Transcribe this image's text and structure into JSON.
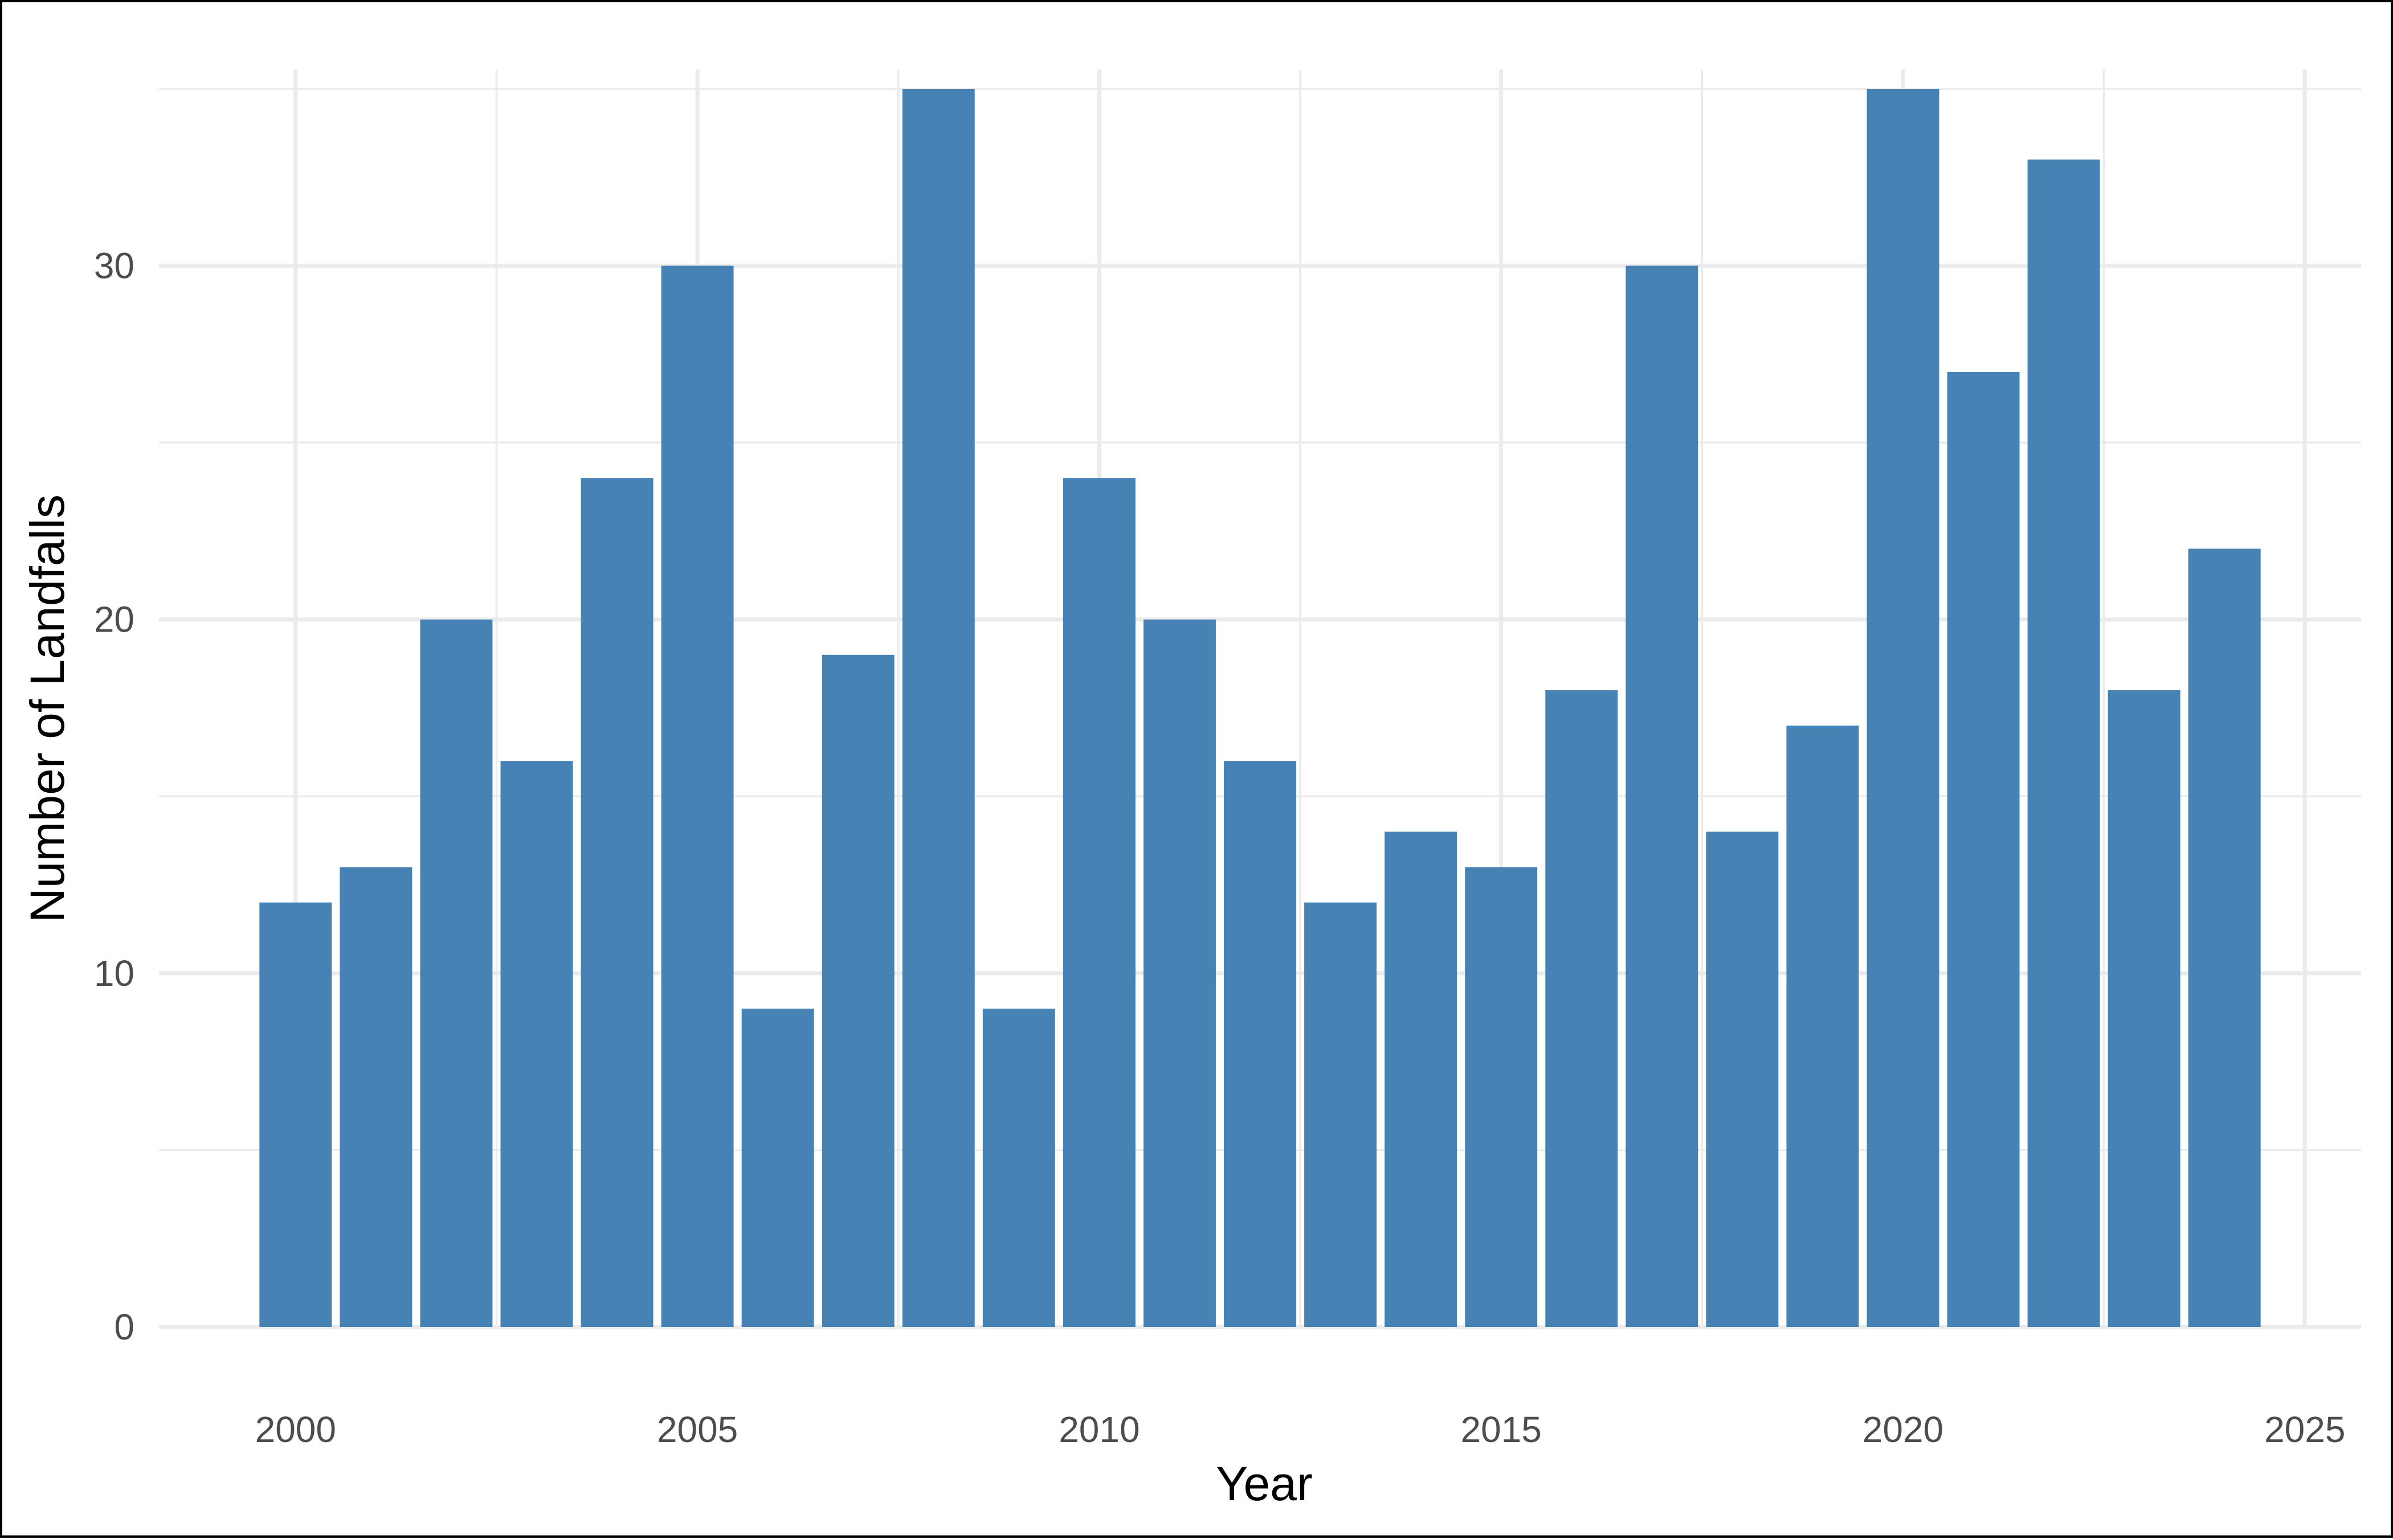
{
  "chart_data": {
    "type": "bar",
    "title": "",
    "xlabel": "Year",
    "ylabel": "Number of Landfalls",
    "x": [
      2000,
      2001,
      2002,
      2003,
      2004,
      2005,
      2006,
      2007,
      2008,
      2009,
      2010,
      2011,
      2012,
      2013,
      2014,
      2015,
      2016,
      2017,
      2018,
      2019,
      2020,
      2021,
      2022,
      2023,
      2024
    ],
    "values": [
      12,
      13,
      20,
      16,
      24,
      30,
      9,
      19,
      35,
      9,
      24,
      20,
      16,
      12,
      14,
      13,
      18,
      30,
      14,
      17,
      35,
      27,
      33,
      18,
      22
    ],
    "xlim": [
      1998.3,
      2025.7
    ],
    "ylim": [
      0,
      35
    ],
    "x_ticks": [
      2000,
      2005,
      2010,
      2015,
      2020,
      2025
    ],
    "y_ticks": [
      0,
      10,
      20,
      30
    ],
    "grid": true,
    "legend": "none",
    "bar_color": "#4682B4",
    "grid_color": "#ebebeb"
  }
}
